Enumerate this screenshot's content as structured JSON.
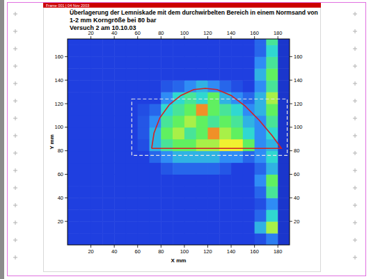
{
  "header": {
    "text": "Frame 001 | 04 Nov 2003"
  },
  "chart_data": {
    "type": "heatmap",
    "title": "Überlagerung der Lemniskade mit dem durchwirbelten Bereich in einem Normsand von",
    "subtitle": [
      "1-2 mm Korngröße bei 80 bar",
      "Versuch 2 am 10.10.03"
    ],
    "x_label": "X mm",
    "y_label": "Y mm",
    "xlim": [
      0,
      190
    ],
    "ylim": [
      0,
      175
    ],
    "xticks": [
      20,
      40,
      60,
      80,
      100,
      120,
      140,
      160,
      180
    ],
    "yticks": [
      20,
      40,
      60,
      80,
      100,
      120,
      140,
      160
    ],
    "x_bins": [
      0,
      10,
      20,
      30,
      40,
      50,
      60,
      70,
      80,
      90,
      100,
      110,
      120,
      130,
      140,
      150,
      160,
      170,
      180,
      190
    ],
    "y_bins": [
      0,
      10,
      20,
      30,
      40,
      50,
      60,
      70,
      80,
      90,
      100,
      110,
      120,
      130,
      140,
      150,
      160,
      170,
      175
    ],
    "zlim": [
      0,
      6
    ],
    "cells": [
      [
        1,
        1,
        1,
        1,
        1,
        1,
        1,
        1,
        1,
        1,
        1,
        1,
        1,
        1,
        1,
        1,
        1.2,
        1.8,
        0.8
      ],
      [
        1,
        1,
        1,
        1,
        1,
        1,
        1,
        1,
        1,
        1,
        1,
        1,
        1,
        1,
        1,
        1,
        2.5,
        4.5,
        0.8
      ],
      [
        1,
        1,
        1,
        1,
        1,
        1,
        1,
        1,
        1,
        1,
        1,
        1,
        1,
        1,
        1,
        1,
        1.5,
        3,
        0.8
      ],
      [
        1,
        1,
        1,
        1,
        1,
        1,
        1,
        1,
        1,
        1,
        1,
        1,
        1,
        1,
        1,
        1,
        1.2,
        2,
        0.8
      ],
      [
        1,
        1,
        1,
        1,
        1,
        1,
        1,
        1,
        1,
        1,
        1,
        1,
        1,
        1,
        1,
        1,
        1.5,
        3.5,
        0.8
      ],
      [
        1,
        1,
        1,
        1,
        1,
        1,
        1,
        1,
        1,
        1,
        1,
        1,
        1,
        1,
        1,
        1,
        2,
        4,
        0.8
      ],
      [
        1,
        1,
        1,
        1,
        1,
        1,
        1,
        1,
        1.3,
        1.5,
        1.5,
        1.5,
        1.5,
        1.3,
        1,
        1,
        1.5,
        2.5,
        0.8
      ],
      [
        1,
        1,
        1,
        1,
        1,
        1,
        1,
        1.5,
        2,
        2.5,
        2.5,
        2.5,
        2.5,
        2,
        2,
        1.5,
        2,
        3,
        0.8
      ],
      [
        1,
        1,
        1,
        1,
        1,
        1,
        1.2,
        2.5,
        3.5,
        4,
        4,
        4.5,
        4.5,
        5,
        5,
        4,
        2,
        2.5,
        0.8
      ],
      [
        1,
        1,
        1,
        1,
        1,
        1,
        1.3,
        2.5,
        4,
        4.5,
        3.5,
        4,
        5.5,
        4.5,
        4,
        3,
        2,
        3,
        0.8
      ],
      [
        1,
        1,
        1,
        1,
        1,
        1,
        1.3,
        2,
        3.5,
        4,
        4.5,
        4,
        3.5,
        4,
        3.5,
        2.5,
        2,
        3.5,
        0.8
      ],
      [
        1,
        1,
        1,
        1,
        1,
        1,
        1.2,
        1.5,
        3,
        3.5,
        4,
        5.5,
        4,
        3.5,
        3,
        2,
        2.5,
        4,
        0.8
      ],
      [
        1,
        1,
        1,
        1,
        1,
        1,
        1,
        1,
        2,
        3,
        3.5,
        3,
        4,
        2.5,
        2,
        1.5,
        2.5,
        4.5,
        0.8
      ],
      [
        1,
        1,
        1,
        1,
        1,
        1,
        1,
        1,
        1.3,
        1.5,
        2,
        2.5,
        2,
        1.5,
        1.2,
        1,
        2,
        3.5,
        0.8
      ],
      [
        1,
        1,
        1,
        1,
        1,
        1,
        1,
        1,
        1,
        1,
        1,
        1,
        1,
        1,
        1,
        1,
        2.5,
        4,
        0.8
      ],
      [
        1,
        1,
        1,
        1,
        1,
        1,
        1,
        1,
        1,
        1,
        1,
        1,
        1,
        1,
        1,
        1,
        2,
        3.5,
        0.8
      ],
      [
        1,
        1,
        1,
        1,
        1,
        1,
        1,
        1,
        1,
        1,
        1,
        1,
        1,
        1,
        1,
        1,
        1.5,
        3,
        0.8
      ],
      [
        1,
        1,
        1,
        1,
        1,
        1,
        1,
        1,
        1,
        1,
        1,
        1,
        1,
        1,
        1,
        1,
        1.5,
        3.5,
        0.8
      ]
    ],
    "overlays": {
      "curve": {
        "x": [
          72,
          74,
          79,
          87,
          97,
          108,
          118,
          128,
          140,
          152,
          164,
          175,
          183,
          72
        ],
        "y": [
          82,
          95,
          108,
          119,
          127,
          132,
          133,
          132,
          127,
          118,
          106,
          93,
          82,
          82
        ],
        "color": "#d42020",
        "line_style": "solid"
      },
      "box": {
        "x": [
          55,
          188
        ],
        "y": [
          76,
          124
        ],
        "color": "#e8e8e8",
        "line_style": "dashed"
      }
    }
  }
}
